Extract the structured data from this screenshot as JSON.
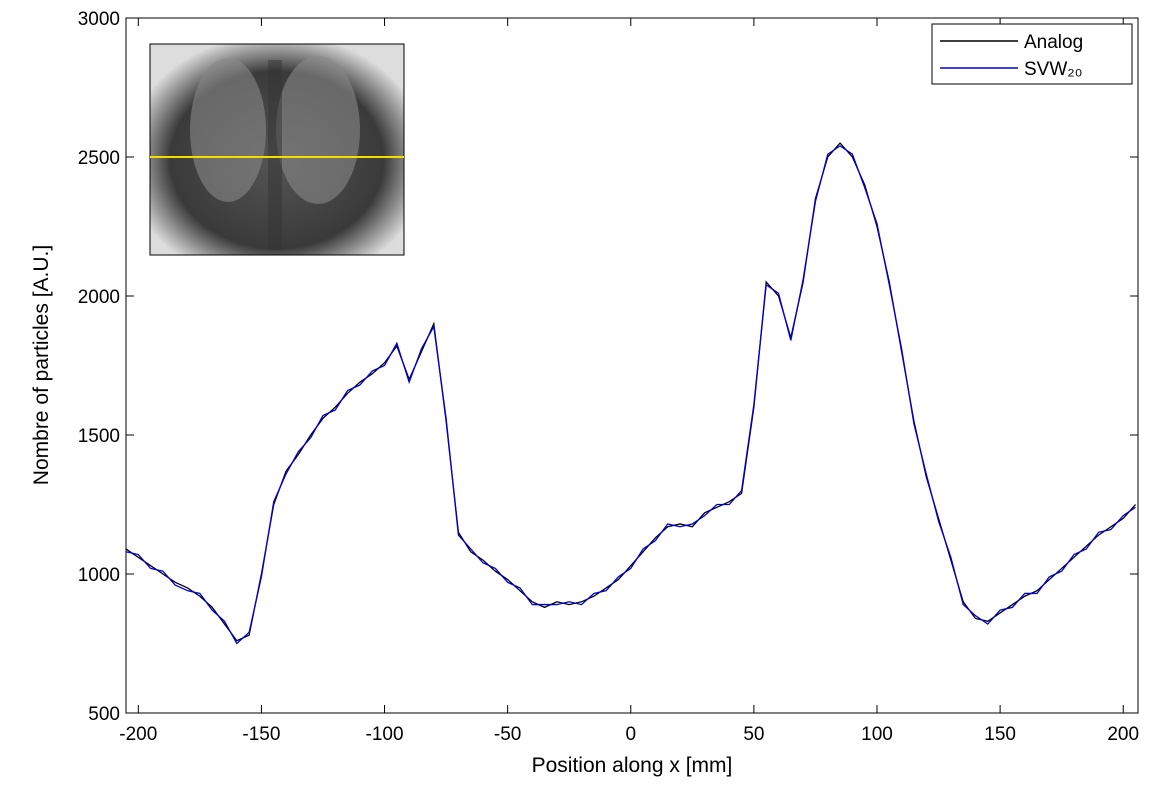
{
  "chart_data": {
    "type": "line",
    "xlabel": "Position along x [mm]",
    "ylabel": "Nombre of particles [A.U.]",
    "x": [
      -205,
      -200,
      -195,
      -190,
      -185,
      -180,
      -175,
      -170,
      -165,
      -160,
      -155,
      -150,
      -145,
      -140,
      -135,
      -130,
      -125,
      -120,
      -115,
      -110,
      -105,
      -100,
      -95,
      -90,
      -85,
      -80,
      -75,
      -70,
      -65,
      -60,
      -55,
      -50,
      -45,
      -40,
      -35,
      -30,
      -25,
      -20,
      -15,
      -10,
      -5,
      0,
      5,
      10,
      15,
      20,
      25,
      30,
      35,
      40,
      45,
      50,
      55,
      60,
      65,
      70,
      75,
      80,
      85,
      90,
      95,
      100,
      105,
      110,
      115,
      120,
      125,
      130,
      135,
      140,
      145,
      150,
      155,
      160,
      165,
      170,
      175,
      180,
      185,
      190,
      195,
      200,
      205
    ],
    "series": [
      {
        "name": "Analog",
        "color": "#000000",
        "values": [
          1090,
          1060,
          1030,
          1000,
          970,
          950,
          920,
          880,
          820,
          760,
          780,
          1000,
          1250,
          1370,
          1430,
          1500,
          1560,
          1600,
          1650,
          1690,
          1720,
          1760,
          1820,
          1700,
          1800,
          1900,
          1550,
          1150,
          1080,
          1050,
          1010,
          980,
          940,
          900,
          880,
          900,
          890,
          900,
          920,
          950,
          980,
          1030,
          1080,
          1130,
          1170,
          1180,
          1170,
          1220,
          1240,
          1260,
          1290,
          1600,
          2050,
          2000,
          1850,
          2050,
          2350,
          2500,
          2550,
          2500,
          2400,
          2250,
          2050,
          1800,
          1550,
          1350,
          1200,
          1050,
          900,
          840,
          830,
          860,
          890,
          920,
          940,
          980,
          1020,
          1060,
          1100,
          1140,
          1170,
          1200,
          1250
        ]
      },
      {
        "name": "SVW₂₀",
        "color": "#0000dd",
        "values": [
          1080,
          1070,
          1020,
          1010,
          960,
          940,
          930,
          870,
          830,
          750,
          790,
          990,
          1260,
          1360,
          1440,
          1490,
          1570,
          1590,
          1660,
          1680,
          1730,
          1750,
          1830,
          1690,
          1810,
          1890,
          1560,
          1140,
          1090,
          1040,
          1020,
          970,
          950,
          890,
          890,
          890,
          900,
          890,
          930,
          940,
          990,
          1020,
          1090,
          1120,
          1180,
          1170,
          1180,
          1210,
          1250,
          1250,
          1300,
          1610,
          2040,
          2010,
          1840,
          2060,
          2340,
          2510,
          2540,
          2510,
          2390,
          2260,
          2040,
          1810,
          1540,
          1360,
          1190,
          1060,
          890,
          850,
          820,
          870,
          880,
          930,
          930,
          990,
          1010,
          1070,
          1090,
          1150,
          1160,
          1210,
          1240
        ]
      }
    ],
    "xlim": [
      -205,
      206
    ],
    "ylim": [
      500,
      3000
    ],
    "xticks": [
      -200,
      -150,
      -100,
      -50,
      0,
      50,
      100,
      150,
      200
    ],
    "yticks": [
      500,
      1000,
      1500,
      2000,
      2500,
      3000
    ],
    "legend": "upper right"
  }
}
